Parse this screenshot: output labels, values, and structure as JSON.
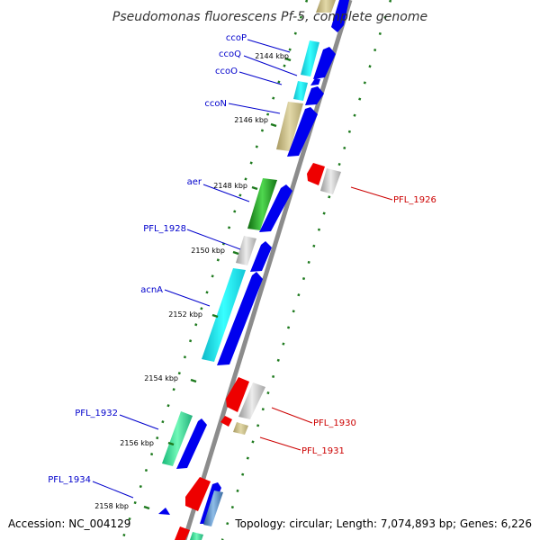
{
  "title": "Pseudomonas fluorescens Pf-5, complete genome",
  "footer": {
    "accession": "Accession: NC_004129",
    "topology": "Topology: circular; Length: 7,074,893 bp; Genes: 6,226"
  },
  "colors": {
    "backbone": "#8c8c8c",
    "tick": "#1e7a1e",
    "forward_label": "#0000cc",
    "reverse_label": "#cc0000"
  },
  "scale_ticks": [
    "2144 kbp",
    "2146 kbp",
    "2148 kbp",
    "2150 kbp",
    "2152 kbp",
    "2154 kbp",
    "2156 kbp",
    "2158 kbp"
  ],
  "forward_labels": [
    "ccoP",
    "ccoQ",
    "ccoO",
    "ccoN",
    "aer",
    "PFL_1928",
    "acnA",
    "PFL_1932",
    "PFL_1934"
  ],
  "reverse_labels": [
    "PFL_1926",
    "PFL_1930",
    "PFL_1931"
  ]
}
